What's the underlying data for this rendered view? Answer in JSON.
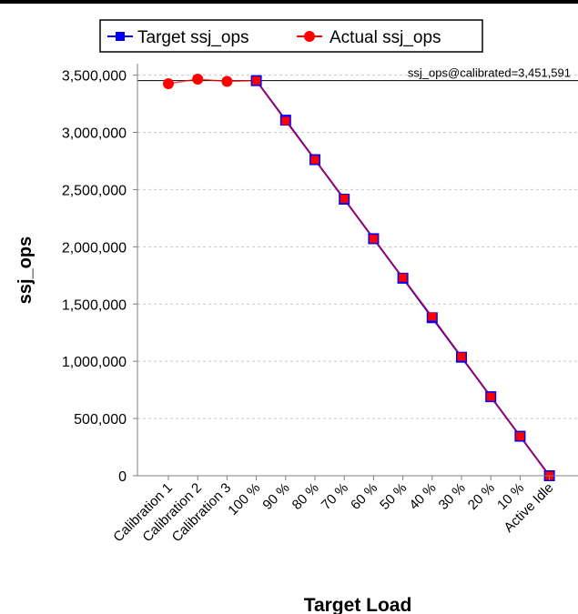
{
  "chart_data": {
    "type": "line",
    "title": "",
    "xlabel": "Target Load",
    "ylabel": "ssj_ops",
    "ylim": [
      0,
      3600000
    ],
    "yticks": [
      0,
      500000,
      1000000,
      1500000,
      2000000,
      2500000,
      3000000,
      3500000
    ],
    "ytick_labels": [
      "0",
      "500,000",
      "1,000,000",
      "1,500,000",
      "2,000,000",
      "2,500,000",
      "3,000,000",
      "3,500,000"
    ],
    "categories": [
      "Calibration 1",
      "Calibration 2",
      "Calibration 3",
      "100 %",
      "90 %",
      "80 %",
      "70 %",
      "60 %",
      "50 %",
      "40 %",
      "30 %",
      "20 %",
      "10 %",
      "Active Idle"
    ],
    "legend_position": "top",
    "grid": "horizontal-dashed",
    "reference_line": {
      "value": 3451591,
      "label": "ssj_ops@calibrated=3,451,591"
    },
    "series": [
      {
        "name": "Target ssj_ops",
        "color": "#0000ff",
        "marker": "square",
        "values": [
          null,
          null,
          null,
          3451591,
          3106432,
          2761273,
          2416114,
          2070955,
          1725796,
          1380636,
          1035477,
          690318,
          345159,
          0
        ]
      },
      {
        "name": "Actual ssj_ops",
        "color": "#ff0000",
        "marker": "circle",
        "values": [
          3425000,
          3465000,
          3445000,
          3452000,
          3100000,
          2760000,
          2420000,
          2070000,
          1730000,
          1390000,
          1040000,
          690000,
          345000,
          0
        ]
      }
    ]
  }
}
